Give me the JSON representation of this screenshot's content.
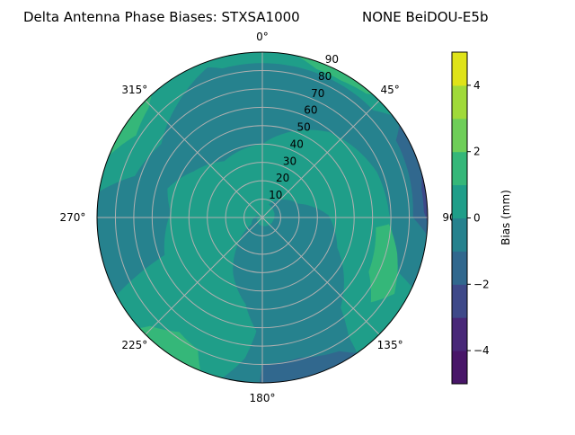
{
  "chart_data": {
    "type": "polar-contour",
    "title_left": "Delta Antenna Phase Biases: STXSA1000",
    "title_right": "NONE BeiDOU-E5b",
    "angular_direction": "clockwise",
    "zero_location": "north",
    "angle_ticks": [
      {
        "angle": 0,
        "label": "0°"
      },
      {
        "angle": 45,
        "label": "45°"
      },
      {
        "angle": 90,
        "label": "90°"
      },
      {
        "angle": 135,
        "label": "135°"
      },
      {
        "angle": 180,
        "label": "180°"
      },
      {
        "angle": 225,
        "label": "225°"
      },
      {
        "angle": 270,
        "label": "270°"
      },
      {
        "angle": 315,
        "label": "315°"
      }
    ],
    "radial_range": [
      0,
      90
    ],
    "radial_ticks": [
      {
        "value": 10,
        "label": "10"
      },
      {
        "value": 20,
        "label": "20"
      },
      {
        "value": 30,
        "label": "30"
      },
      {
        "value": 40,
        "label": "40"
      },
      {
        "value": 50,
        "label": "50"
      },
      {
        "value": 60,
        "label": "60"
      },
      {
        "value": 70,
        "label": "70"
      },
      {
        "value": 80,
        "label": "80"
      },
      {
        "value": 90,
        "label": "90"
      }
    ],
    "grid": true,
    "levels": [
      -5,
      -4,
      -3,
      -2,
      -1,
      0,
      1,
      2,
      3,
      4,
      5
    ],
    "level_colors": [
      "#481668",
      "#482878",
      "#3e4989",
      "#31688e",
      "#26828e",
      "#1f9e89",
      "#35b779",
      "#6ece58",
      "#a0da39",
      "#dfe318"
    ],
    "background_band": [
      0,
      1
    ],
    "regions": [
      {
        "band": [
          -1,
          0
        ],
        "points": [
          [
            242,
            90
          ],
          [
            279,
            90
          ],
          [
            288,
            73
          ],
          [
            306,
            68
          ],
          [
            323,
            77
          ],
          [
            340,
            87
          ],
          [
            345,
            84
          ],
          [
            360,
            84
          ],
          [
            385,
            84
          ],
          [
            406,
            84
          ],
          [
            412,
            90
          ],
          [
            475,
            90
          ],
          [
            472,
            80
          ],
          [
            460,
            72
          ],
          [
            448,
            69
          ],
          [
            428,
            67
          ],
          [
            398,
            59
          ],
          [
            360,
            40
          ],
          [
            326,
            37
          ],
          [
            304,
            45
          ],
          [
            287,
            54
          ],
          [
            273,
            50
          ],
          [
            249,
            57
          ]
        ]
      },
      {
        "band": [
          -1,
          0
        ],
        "points": [
          [
            26,
            8
          ],
          [
            69,
            21
          ],
          [
            88,
            36
          ],
          [
            112,
            44
          ],
          [
            139,
            65
          ],
          [
            144,
            80
          ],
          [
            145,
            90
          ],
          [
            194,
            90
          ],
          [
            187,
            77
          ],
          [
            183,
            62
          ],
          [
            191,
            48
          ],
          [
            208,
            34
          ],
          [
            220,
            22
          ],
          [
            238,
            7
          ],
          [
            300,
            2
          ]
        ]
      },
      {
        "band": [
          -2,
          -1
        ],
        "points": [
          [
            181,
            90
          ],
          [
            180,
            80
          ],
          [
            165,
            79
          ],
          [
            150,
            84
          ],
          [
            145,
            90
          ]
        ]
      },
      {
        "band": [
          -2,
          -1
        ],
        "points": [
          [
            56,
            90
          ],
          [
            60,
            84
          ],
          [
            75,
            83
          ],
          [
            90,
            82
          ],
          [
            96,
            90
          ]
        ]
      },
      {
        "band": [
          -3,
          -2
        ],
        "points": [
          [
            74,
            90
          ],
          [
            80,
            88
          ],
          [
            88,
            88
          ],
          [
            92,
            90
          ]
        ]
      },
      {
        "band": [
          1,
          2
        ],
        "points": [
          [
            95,
            62
          ],
          [
            93,
            69
          ],
          [
            105,
            76
          ],
          [
            120,
            83
          ],
          [
            128,
            75
          ],
          [
            117,
            65
          ]
        ]
      },
      {
        "band": [
          1,
          2
        ],
        "points": [
          [
            228,
            90
          ],
          [
            226,
            85
          ],
          [
            216,
            77
          ],
          [
            206,
            80
          ],
          [
            202,
            90
          ]
        ]
      },
      {
        "band": [
          1,
          2
        ],
        "points": [
          [
            292,
            90
          ],
          [
            303,
            82
          ],
          [
            314,
            86
          ],
          [
            318,
            90
          ]
        ]
      },
      {
        "band": [
          1,
          2
        ],
        "points": [
          [
            12,
            90
          ],
          [
            20,
            86
          ],
          [
            30,
            86
          ],
          [
            40,
            88
          ],
          [
            42,
            90
          ]
        ]
      }
    ],
    "colorbar": {
      "label": "Bias (mm)",
      "range": [
        -5,
        5
      ],
      "ticks": [
        {
          "value": 4,
          "label": "4"
        },
        {
          "value": 2,
          "label": "2"
        },
        {
          "value": 0,
          "label": "0"
        },
        {
          "value": -2,
          "label": "−2"
        },
        {
          "value": -4,
          "label": "−4"
        }
      ]
    },
    "grid_color": "#b0b0b0"
  }
}
